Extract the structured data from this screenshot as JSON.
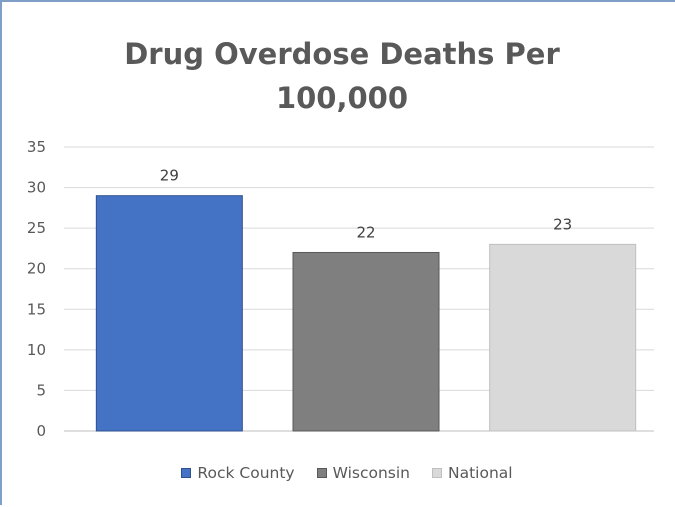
{
  "chart_data": {
    "type": "bar",
    "title_line1": "Drug Overdose Deaths Per",
    "title_line2": "100,000",
    "categories": [
      "Rock County",
      "Wisconsin",
      "National"
    ],
    "values": [
      29,
      22,
      23
    ],
    "data_labels": [
      "29",
      "22",
      "23"
    ],
    "colors": [
      "#4472c4",
      "#7f7f7f",
      "#d9d9d9"
    ],
    "yticks": [
      "0",
      "5",
      "10",
      "15",
      "20",
      "25",
      "30",
      "35"
    ],
    "ylim": [
      0,
      35
    ],
    "grid": true,
    "legend_position": "bottom",
    "legend": [
      "Rock County",
      "Wisconsin",
      "National"
    ]
  }
}
